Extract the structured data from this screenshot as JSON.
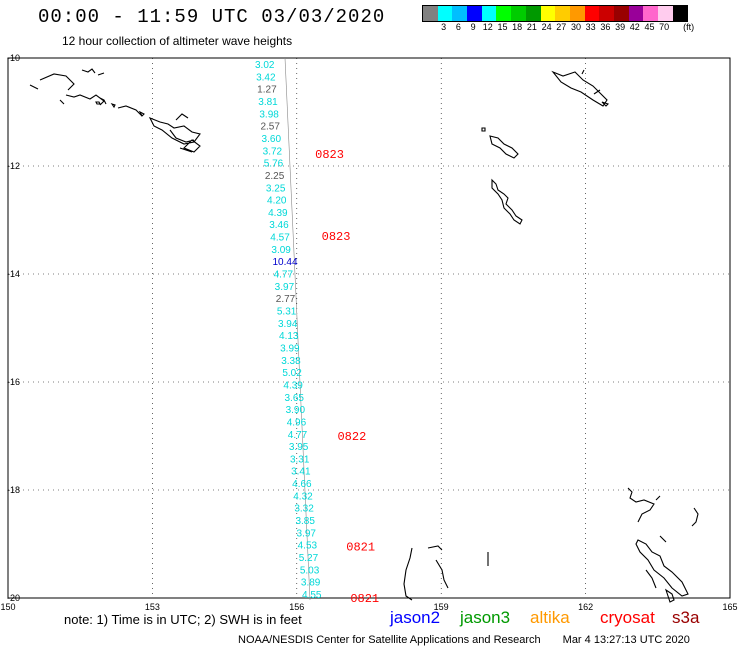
{
  "header": {
    "title": "00:00 - 11:59 UTC 03/03/2020",
    "subtitle": "12 hour collection of altimeter wave heights"
  },
  "legend": {
    "unit": "(ft)",
    "swatches": [
      {
        "color": "#808080",
        "label": ""
      },
      {
        "color": "#00ffff",
        "label": "3"
      },
      {
        "color": "#00bfff",
        "label": "6"
      },
      {
        "color": "#0000ff",
        "label": "9"
      },
      {
        "color": "#00ffff",
        "label": "12"
      },
      {
        "color": "#00ff00",
        "label": "15"
      },
      {
        "color": "#00cc00",
        "label": "18"
      },
      {
        "color": "#009900",
        "label": "21"
      },
      {
        "color": "#ffff00",
        "label": "24"
      },
      {
        "color": "#ffcc00",
        "label": "27"
      },
      {
        "color": "#ff9900",
        "label": "30"
      },
      {
        "color": "#ff0000",
        "label": "33"
      },
      {
        "color": "#cc0000",
        "label": "36"
      },
      {
        "color": "#990000",
        "label": "39"
      },
      {
        "color": "#990099",
        "label": "42"
      },
      {
        "color": "#ff66cc",
        "label": "45"
      },
      {
        "color": "#ffccee",
        "label": "70"
      },
      {
        "color": "#000000",
        "label": ""
      }
    ]
  },
  "map": {
    "lon_range": [
      150,
      165
    ],
    "lat_range": [
      -10,
      -20
    ],
    "lon_ticks": [
      "150",
      "153",
      "156",
      "159",
      "162",
      "165"
    ],
    "lat_ticks": [
      "-10",
      "-12",
      "-14",
      "-16",
      "-18",
      "-20"
    ],
    "grid": true
  },
  "wave_heights": [
    {
      "value": "3.02",
      "color": "#00d8d8"
    },
    {
      "value": "3.42",
      "color": "#00d8d8"
    },
    {
      "value": "1.27",
      "color": "#555555"
    },
    {
      "value": "3.81",
      "color": "#00d8d8"
    },
    {
      "value": "3.98",
      "color": "#00d8d8"
    },
    {
      "value": "2.57",
      "color": "#555555"
    },
    {
      "value": "3.60",
      "color": "#00d8d8"
    },
    {
      "value": "3.72",
      "color": "#00d8d8"
    },
    {
      "value": "5.76",
      "color": "#00d8d8"
    },
    {
      "value": "2.25",
      "color": "#555555"
    },
    {
      "value": "3.25",
      "color": "#00d8d8"
    },
    {
      "value": "4.20",
      "color": "#00d8d8"
    },
    {
      "value": "4.39",
      "color": "#00d8d8"
    },
    {
      "value": "3.46",
      "color": "#00d8d8"
    },
    {
      "value": "4.57",
      "color": "#00d8d8"
    },
    {
      "value": "3.09",
      "color": "#00d8d8"
    },
    {
      "value": "10.44",
      "color": "#0000cc"
    },
    {
      "value": "4.77",
      "color": "#00d8d8"
    },
    {
      "value": "3.97",
      "color": "#00d8d8"
    },
    {
      "value": "2.77",
      "color": "#555555"
    },
    {
      "value": "5.31",
      "color": "#00d8d8"
    },
    {
      "value": "3.94",
      "color": "#00d8d8"
    },
    {
      "value": "4.13",
      "color": "#00d8d8"
    },
    {
      "value": "3.99",
      "color": "#00d8d8"
    },
    {
      "value": "3.38",
      "color": "#00d8d8"
    },
    {
      "value": "5.02",
      "color": "#00d8d8"
    },
    {
      "value": "4.39",
      "color": "#00d8d8"
    },
    {
      "value": "3.65",
      "color": "#00d8d8"
    },
    {
      "value": "3.90",
      "color": "#00d8d8"
    },
    {
      "value": "4.96",
      "color": "#00d8d8"
    },
    {
      "value": "4.77",
      "color": "#00d8d8"
    },
    {
      "value": "3.95",
      "color": "#00d8d8"
    },
    {
      "value": "3.31",
      "color": "#00d8d8"
    },
    {
      "value": "3.41",
      "color": "#00d8d8"
    },
    {
      "value": "4.66",
      "color": "#00d8d8"
    },
    {
      "value": "4.32",
      "color": "#00d8d8"
    },
    {
      "value": "3.32",
      "color": "#00d8d8"
    },
    {
      "value": "3.85",
      "color": "#00d8d8"
    },
    {
      "value": "3.97",
      "color": "#00d8d8"
    },
    {
      "value": "4.53",
      "color": "#00d8d8"
    },
    {
      "value": "5.27",
      "color": "#00d8d8"
    },
    {
      "value": "5.03",
      "color": "#00d8d8"
    },
    {
      "value": "3.89",
      "color": "#00d8d8"
    },
    {
      "value": "4.55",
      "color": "#00d8d8"
    }
  ],
  "time_labels": [
    {
      "text": "0823",
      "lat": -11.78
    },
    {
      "text": "0823",
      "lat": -13.3
    },
    {
      "text": "0822",
      "lat": -17.0
    },
    {
      "text": "0821",
      "lat": -19.05
    },
    {
      "text": "0821",
      "lat": -20.0
    }
  ],
  "footer": {
    "note": "note: 1) Time is in UTC; 2) SWH is in feet",
    "satellites": [
      {
        "name": "jason2",
        "color": "#0000ff"
      },
      {
        "name": "jason3",
        "color": "#009900"
      },
      {
        "name": "altika",
        "color": "#ff9900"
      },
      {
        "name": "cryosat",
        "color": "#ff0000"
      },
      {
        "name": "s3a",
        "color": "#990000"
      }
    ],
    "credit": "NOAA/NESDIS Center for Satellite Applications and Research",
    "generated": "Mar  4 13:27:13 UTC 2020"
  },
  "colors": {
    "time_label": "#ff0000",
    "grid": "#000000"
  }
}
